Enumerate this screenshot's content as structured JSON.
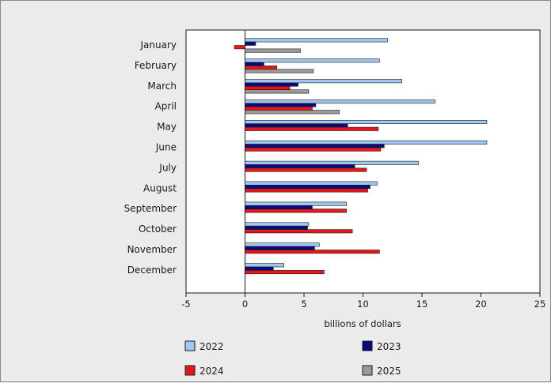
{
  "chart_data": {
    "type": "bar",
    "orientation": "horizontal",
    "categories": [
      "January",
      "February",
      "March",
      "April",
      "May",
      "June",
      "July",
      "August",
      "September",
      "October",
      "November",
      "December"
    ],
    "series": [
      {
        "name": "2022",
        "color": "#9dc8ef",
        "values": [
          12.1,
          11.4,
          13.3,
          16.1,
          20.5,
          20.5,
          14.7,
          11.2,
          8.6,
          5.4,
          6.3,
          3.3
        ]
      },
      {
        "name": "2023",
        "color": "#0a0a7a",
        "values": [
          0.9,
          1.6,
          4.5,
          6.0,
          8.7,
          11.8,
          9.3,
          10.6,
          5.7,
          5.3,
          5.9,
          2.4
        ]
      },
      {
        "name": "2024",
        "color": "#e8151b",
        "values": [
          -0.9,
          2.7,
          3.8,
          5.7,
          11.3,
          11.5,
          10.3,
          10.4,
          8.6,
          9.1,
          11.4,
          6.7
        ]
      },
      {
        "name": "2025",
        "color": "#9a9a9a",
        "values": [
          4.7,
          5.8,
          5.4,
          8.0,
          null,
          null,
          null,
          null,
          null,
          null,
          null,
          null
        ]
      }
    ],
    "xlabel": "billions of dollars",
    "xlim": [
      -5,
      25
    ],
    "xticks": [
      "-5",
      "0",
      "5",
      "10",
      "15",
      "20",
      "25"
    ],
    "grid": false,
    "legend_position": "bottom"
  }
}
